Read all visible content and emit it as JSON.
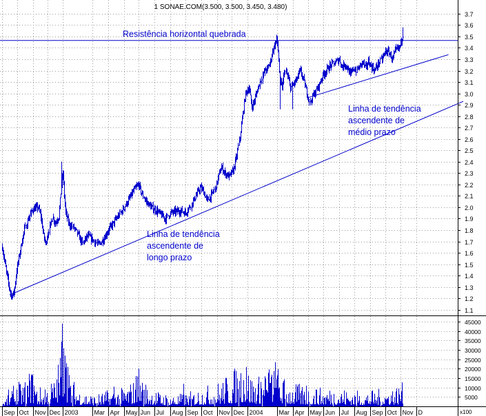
{
  "chart_data": {
    "type": "line",
    "title": "1 SONAE.COM(3.500, 3.500, 3.450, 3.480)",
    "colors": {
      "series": "#0000cc",
      "axis": "#000000",
      "grid": "#9a9a9a",
      "annotation": "#0000cc"
    },
    "grid": true,
    "price_axis": {
      "position": "right",
      "ylim": [
        1.05,
        3.82
      ],
      "ticks": [
        "3.7",
        "3.6",
        "3.5",
        "3.4",
        "3.3",
        "3.2",
        "3.1",
        "3.0",
        "2.9",
        "2.8",
        "2.7",
        "2.6",
        "2.5",
        "2.4",
        "2.3",
        "2.2",
        "2.1",
        "2.0",
        "1.9",
        "1.8",
        "1.7",
        "1.6",
        "1.5",
        "1.4",
        "1.3",
        "1.2",
        "1.1"
      ]
    },
    "volume_axis": {
      "position": "right",
      "ylim": [
        0,
        48000
      ],
      "ticks": [
        "45000",
        "40000",
        "35000",
        "30000",
        "25000",
        "20000",
        "15000",
        "10000",
        "5000"
      ],
      "unit_label": "x100"
    },
    "months": [
      {
        "label": "Sep",
        "idx": 0
      },
      {
        "label": "Oct",
        "idx": 22
      },
      {
        "label": "Nov",
        "idx": 44
      },
      {
        "label": "Dec",
        "idx": 65
      },
      {
        "label": "2003",
        "idx": 86
      },
      {
        "label": "Mar",
        "idx": 128
      },
      {
        "label": "Apr",
        "idx": 150
      },
      {
        "label": "May",
        "idx": 172
      },
      {
        "label": "Jun",
        "idx": 193
      },
      {
        "label": "Jul",
        "idx": 215
      },
      {
        "label": "Aug",
        "idx": 237
      },
      {
        "label": "Sep",
        "idx": 259
      },
      {
        "label": "Oct",
        "idx": 281
      },
      {
        "label": "Nov",
        "idx": 303
      },
      {
        "label": "Dec",
        "idx": 324
      },
      {
        "label": "2004",
        "idx": 346
      },
      {
        "label": "Mar",
        "idx": 388
      },
      {
        "label": "Apr",
        "idx": 410
      },
      {
        "label": "May",
        "idx": 432
      },
      {
        "label": "Jun",
        "idx": 453
      },
      {
        "label": "Jul",
        "idx": 475
      },
      {
        "label": "Aug",
        "idx": 497
      },
      {
        "label": "Sep",
        "idx": 519
      },
      {
        "label": "Oct",
        "idx": 540
      },
      {
        "label": "Nov",
        "idx": 562
      },
      {
        "label": "D",
        "idx": 584
      }
    ],
    "price_anchors": [
      [
        0,
        1.65
      ],
      [
        4,
        1.5
      ],
      [
        9,
        1.33
      ],
      [
        13,
        1.22
      ],
      [
        17,
        1.25
      ],
      [
        21,
        1.45
      ],
      [
        26,
        1.62
      ],
      [
        31,
        1.78
      ],
      [
        37,
        1.9
      ],
      [
        43,
        1.98
      ],
      [
        51,
        2.0
      ],
      [
        55,
        1.92
      ],
      [
        59,
        1.75
      ],
      [
        62,
        1.68
      ],
      [
        66,
        1.8
      ],
      [
        71,
        1.92
      ],
      [
        75,
        1.86
      ],
      [
        80,
        1.92
      ],
      [
        84,
        2.2
      ],
      [
        86,
        2.3
      ],
      [
        88,
        2.1
      ],
      [
        90,
        1.95
      ],
      [
        95,
        1.85
      ],
      [
        101,
        1.82
      ],
      [
        107,
        1.76
      ],
      [
        113,
        1.68
      ],
      [
        121,
        1.75
      ],
      [
        129,
        1.71
      ],
      [
        136,
        1.67
      ],
      [
        143,
        1.72
      ],
      [
        150,
        1.8
      ],
      [
        157,
        1.86
      ],
      [
        165,
        1.93
      ],
      [
        172,
        2.0
      ],
      [
        178,
        2.06
      ],
      [
        186,
        2.15
      ],
      [
        193,
        2.2
      ],
      [
        197,
        2.12
      ],
      [
        203,
        2.05
      ],
      [
        210,
        2.0
      ],
      [
        218,
        1.97
      ],
      [
        225,
        1.93
      ],
      [
        231,
        1.9
      ],
      [
        237,
        1.95
      ],
      [
        244,
        1.96
      ],
      [
        252,
        1.97
      ],
      [
        259,
        1.95
      ],
      [
        266,
        2.02
      ],
      [
        273,
        2.1
      ],
      [
        279,
        2.17
      ],
      [
        283,
        2.15
      ],
      [
        289,
        2.06
      ],
      [
        295,
        2.1
      ],
      [
        301,
        2.18
      ],
      [
        305,
        2.28
      ],
      [
        309,
        2.35
      ],
      [
        314,
        2.3
      ],
      [
        320,
        2.27
      ],
      [
        326,
        2.32
      ],
      [
        331,
        2.45
      ],
      [
        335,
        2.62
      ],
      [
        339,
        2.82
      ],
      [
        343,
        3.0
      ],
      [
        348,
        3.05
      ],
      [
        352,
        2.88
      ],
      [
        356,
        2.94
      ],
      [
        361,
        3.05
      ],
      [
        366,
        3.14
      ],
      [
        370,
        3.2
      ],
      [
        374,
        3.22
      ],
      [
        378,
        3.28
      ],
      [
        381,
        3.37
      ],
      [
        384,
        3.42
      ],
      [
        387,
        3.48
      ],
      [
        389,
        3.38
      ],
      [
        392,
        3.1
      ],
      [
        395,
        3.05
      ],
      [
        398,
        3.2
      ],
      [
        402,
        3.15
      ],
      [
        406,
        3.05
      ],
      [
        410,
        3.08
      ],
      [
        415,
        3.12
      ],
      [
        420,
        3.2
      ],
      [
        424,
        3.14
      ],
      [
        428,
        3.05
      ],
      [
        431,
        2.98
      ],
      [
        434,
        2.92
      ],
      [
        437,
        2.97
      ],
      [
        442,
        3.02
      ],
      [
        447,
        3.08
      ],
      [
        452,
        3.16
      ],
      [
        457,
        3.2
      ],
      [
        462,
        3.24
      ],
      [
        467,
        3.26
      ],
      [
        471,
        3.28
      ],
      [
        475,
        3.3
      ],
      [
        479,
        3.23
      ],
      [
        483,
        3.26
      ],
      [
        487,
        3.22
      ],
      [
        491,
        3.16
      ],
      [
        495,
        3.22
      ],
      [
        499,
        3.2
      ],
      [
        504,
        3.24
      ],
      [
        508,
        3.28
      ],
      [
        512,
        3.22
      ],
      [
        516,
        3.28
      ],
      [
        520,
        3.24
      ],
      [
        525,
        3.2
      ],
      [
        530,
        3.26
      ],
      [
        535,
        3.3
      ],
      [
        540,
        3.37
      ],
      [
        545,
        3.36
      ],
      [
        550,
        3.3
      ],
      [
        555,
        3.38
      ],
      [
        560,
        3.4
      ],
      [
        563,
        3.47
      ],
      [
        565,
        3.52
      ]
    ],
    "volume_anchors": [
      [
        0,
        1800
      ],
      [
        10,
        3500
      ],
      [
        20,
        6000
      ],
      [
        30,
        7000
      ],
      [
        42,
        12000
      ],
      [
        50,
        6000
      ],
      [
        60,
        5500
      ],
      [
        70,
        8000
      ],
      [
        80,
        14000
      ],
      [
        86,
        30000
      ],
      [
        90,
        16000
      ],
      [
        96,
        9000
      ],
      [
        110,
        5000
      ],
      [
        130,
        3500
      ],
      [
        150,
        5000
      ],
      [
        170,
        5500
      ],
      [
        185,
        8000
      ],
      [
        192,
        12000
      ],
      [
        200,
        7000
      ],
      [
        220,
        4500
      ],
      [
        240,
        3500
      ],
      [
        260,
        4000
      ],
      [
        280,
        5500
      ],
      [
        300,
        7000
      ],
      [
        320,
        9500
      ],
      [
        330,
        12000
      ],
      [
        340,
        15000
      ],
      [
        350,
        10000
      ],
      [
        360,
        8500
      ],
      [
        375,
        12500
      ],
      [
        385,
        14000
      ],
      [
        395,
        9000
      ],
      [
        410,
        7000
      ],
      [
        430,
        6000
      ],
      [
        450,
        5500
      ],
      [
        470,
        6000
      ],
      [
        490,
        5000
      ],
      [
        510,
        4500
      ],
      [
        530,
        5000
      ],
      [
        550,
        6000
      ],
      [
        565,
        7000
      ]
    ],
    "volume_spikes": [
      [
        9,
        9000
      ],
      [
        16,
        11000
      ],
      [
        24,
        13000
      ],
      [
        41,
        17000
      ],
      [
        45,
        11000
      ],
      [
        61,
        9000
      ],
      [
        74,
        10000
      ],
      [
        80,
        12500
      ],
      [
        83,
        15500
      ],
      [
        85,
        44000
      ],
      [
        87,
        31000
      ],
      [
        89,
        27000
      ],
      [
        91,
        23000
      ],
      [
        93,
        21000
      ],
      [
        97,
        11000
      ],
      [
        158,
        10500
      ],
      [
        191,
        16000
      ],
      [
        193,
        20000
      ],
      [
        198,
        12500
      ],
      [
        202,
        11500
      ],
      [
        256,
        12000
      ],
      [
        316,
        15000
      ],
      [
        334,
        13500
      ],
      [
        344,
        21000
      ],
      [
        365,
        13000
      ],
      [
        370,
        16000
      ],
      [
        378,
        12500
      ],
      [
        387,
        14500
      ],
      [
        396,
        12500
      ],
      [
        429,
        11000
      ],
      [
        442,
        9000
      ],
      [
        563,
        8000
      ],
      [
        568,
        8500
      ]
    ],
    "annotations": {
      "resistance": {
        "label": "Resistência horizontal quebrada",
        "price": 3.465
      },
      "long_trend": {
        "label": [
          "Linha de tendência",
          "ascendente de",
          "longo prazo"
        ],
        "from": [
          11,
          1.23
        ],
        "to": [
          650,
          2.93
        ]
      },
      "medium_trend": {
        "label": [
          "Linha de tendência",
          "ascendente de",
          "médio prazo"
        ],
        "from": [
          430,
          2.96
        ],
        "to": [
          565,
          3.34
        ]
      }
    }
  }
}
